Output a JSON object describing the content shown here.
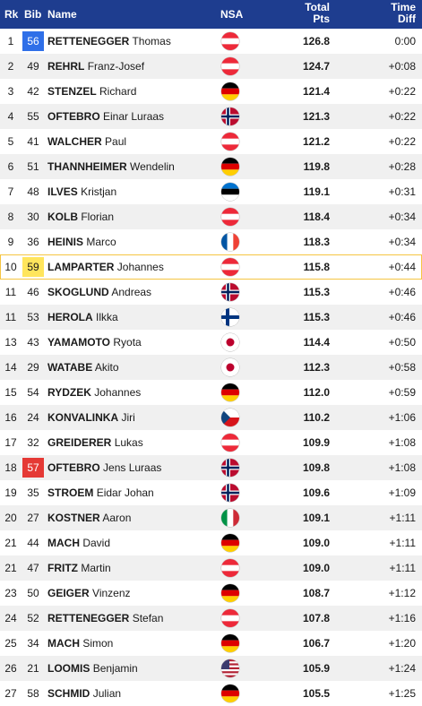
{
  "header": {
    "rk": "Rk",
    "bib": "Bib",
    "name": "Name",
    "nsa": "NSA",
    "pts_line1": "Total",
    "pts_line2": "Pts",
    "time_line1": "Time",
    "time_line2": "Diff"
  },
  "rows": [
    {
      "rk": "1",
      "bib": "56",
      "last": "RETTENEGGER",
      "first": "Thomas",
      "nsa": "AUT",
      "pts": "126.8",
      "diff": "0:00",
      "bib_color": "blue"
    },
    {
      "rk": "2",
      "bib": "49",
      "last": "REHRL",
      "first": "Franz-Josef",
      "nsa": "AUT",
      "pts": "124.7",
      "diff": "+0:08"
    },
    {
      "rk": "3",
      "bib": "42",
      "last": "STENZEL",
      "first": "Richard",
      "nsa": "GER",
      "pts": "121.4",
      "diff": "+0:22"
    },
    {
      "rk": "4",
      "bib": "55",
      "last": "OFTEBRO",
      "first": "Einar Luraas",
      "nsa": "NOR",
      "pts": "121.3",
      "diff": "+0:22"
    },
    {
      "rk": "5",
      "bib": "41",
      "last": "WALCHER",
      "first": "Paul",
      "nsa": "AUT",
      "pts": "121.2",
      "diff": "+0:22"
    },
    {
      "rk": "6",
      "bib": "51",
      "last": "THANNHEIMER",
      "first": "Wendelin",
      "nsa": "GER",
      "pts": "119.8",
      "diff": "+0:28"
    },
    {
      "rk": "7",
      "bib": "48",
      "last": "ILVES",
      "first": "Kristjan",
      "nsa": "EST",
      "pts": "119.1",
      "diff": "+0:31"
    },
    {
      "rk": "8",
      "bib": "30",
      "last": "KOLB",
      "first": "Florian",
      "nsa": "AUT",
      "pts": "118.4",
      "diff": "+0:34"
    },
    {
      "rk": "9",
      "bib": "36",
      "last": "HEINIS",
      "first": "Marco",
      "nsa": "FRA",
      "pts": "118.3",
      "diff": "+0:34"
    },
    {
      "rk": "10",
      "bib": "59",
      "last": "LAMPARTER",
      "first": "Johannes",
      "nsa": "AUT",
      "pts": "115.8",
      "diff": "+0:44",
      "bib_color": "yellow",
      "highlight": true
    },
    {
      "rk": "11",
      "bib": "46",
      "last": "SKOGLUND",
      "first": "Andreas",
      "nsa": "NOR",
      "pts": "115.3",
      "diff": "+0:46"
    },
    {
      "rk": "11",
      "bib": "53",
      "last": "HEROLA",
      "first": "Ilkka",
      "nsa": "FIN",
      "pts": "115.3",
      "diff": "+0:46"
    },
    {
      "rk": "13",
      "bib": "43",
      "last": "YAMAMOTO",
      "first": "Ryota",
      "nsa": "JPN",
      "pts": "114.4",
      "diff": "+0:50"
    },
    {
      "rk": "14",
      "bib": "29",
      "last": "WATABE",
      "first": "Akito",
      "nsa": "JPN",
      "pts": "112.3",
      "diff": "+0:58"
    },
    {
      "rk": "15",
      "bib": "54",
      "last": "RYDZEK",
      "first": "Johannes",
      "nsa": "GER",
      "pts": "112.0",
      "diff": "+0:59"
    },
    {
      "rk": "16",
      "bib": "24",
      "last": "KONVALINKA",
      "first": "Jiri",
      "nsa": "CZE",
      "pts": "110.2",
      "diff": "+1:06"
    },
    {
      "rk": "17",
      "bib": "32",
      "last": "GREIDERER",
      "first": "Lukas",
      "nsa": "AUT",
      "pts": "109.9",
      "diff": "+1:08"
    },
    {
      "rk": "18",
      "bib": "57",
      "last": "OFTEBRO",
      "first": "Jens Luraas",
      "nsa": "NOR",
      "pts": "109.8",
      "diff": "+1:08",
      "bib_color": "red"
    },
    {
      "rk": "19",
      "bib": "35",
      "last": "STROEM",
      "first": "Eidar Johan",
      "nsa": "NOR",
      "pts": "109.6",
      "diff": "+1:09"
    },
    {
      "rk": "20",
      "bib": "27",
      "last": "KOSTNER",
      "first": "Aaron",
      "nsa": "ITA",
      "pts": "109.1",
      "diff": "+1:11"
    },
    {
      "rk": "21",
      "bib": "44",
      "last": "MACH",
      "first": "David",
      "nsa": "GER",
      "pts": "109.0",
      "diff": "+1:11"
    },
    {
      "rk": "21",
      "bib": "47",
      "last": "FRITZ",
      "first": "Martin",
      "nsa": "AUT",
      "pts": "109.0",
      "diff": "+1:11"
    },
    {
      "rk": "23",
      "bib": "50",
      "last": "GEIGER",
      "first": "Vinzenz",
      "nsa": "GER",
      "pts": "108.7",
      "diff": "+1:12"
    },
    {
      "rk": "24",
      "bib": "52",
      "last": "RETTENEGGER",
      "first": "Stefan",
      "nsa": "AUT",
      "pts": "107.8",
      "diff": "+1:16"
    },
    {
      "rk": "25",
      "bib": "34",
      "last": "MACH",
      "first": "Simon",
      "nsa": "GER",
      "pts": "106.7",
      "diff": "+1:20"
    },
    {
      "rk": "26",
      "bib": "21",
      "last": "LOOMIS",
      "first": "Benjamin",
      "nsa": "USA",
      "pts": "105.9",
      "diff": "+1:24"
    },
    {
      "rk": "27",
      "bib": "58",
      "last": "SCHMID",
      "first": "Julian",
      "nsa": "GER",
      "pts": "105.5",
      "diff": "+1:25"
    }
  ],
  "colors": {
    "header_bg": "#1e3d8f",
    "highlight_border": "#f5c542",
    "bib_blue": "#2f6fe8",
    "bib_yellow": "#ffe55c",
    "bib_red": "#e53935"
  }
}
